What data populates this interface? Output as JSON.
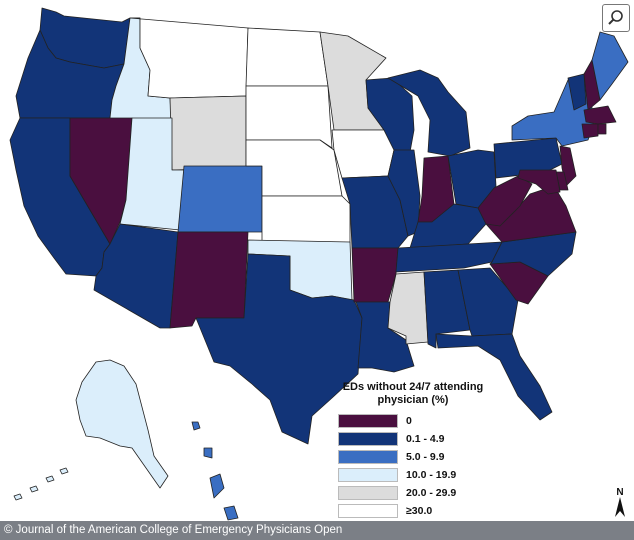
{
  "legend": {
    "title": "EDs without 24/7 attending physician (%)",
    "items": [
      {
        "label": "0",
        "color": "#4a0f3f"
      },
      {
        "label": "0.1 - 4.9",
        "color": "#123478"
      },
      {
        "label": "5.0 - 9.9",
        "color": "#3a6ec2"
      },
      {
        "label": "10.0 - 19.9",
        "color": "#dbeefb"
      },
      {
        "label": "20.0 - 29.9",
        "color": "#dcdcdc"
      },
      {
        "label": "≥30.0",
        "color": "#ffffff"
      }
    ]
  },
  "north_label": "N",
  "footer": "© Journal of the American College of Emergency Physicians Open",
  "zoom_icon": "magnifier-icon"
}
